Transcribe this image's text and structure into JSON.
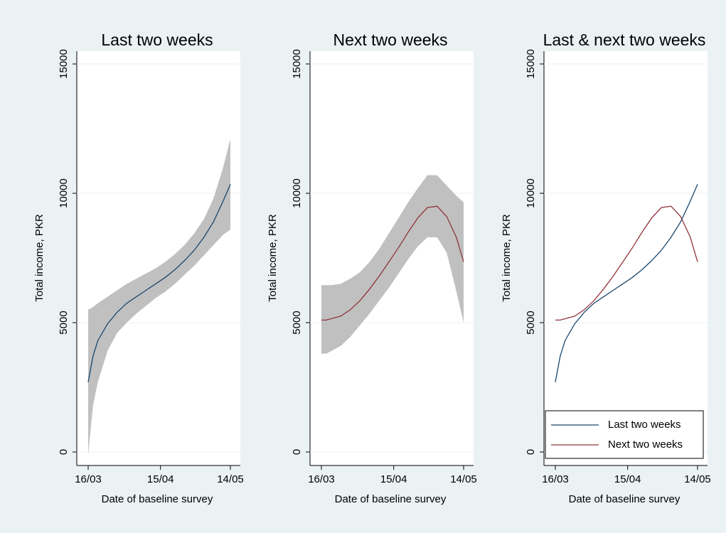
{
  "chart_data": [
    {
      "type": "line",
      "title": "Last two weeks",
      "xlabel": "Date of baseline survey",
      "ylabel": "Total income, PKR",
      "x": [
        "16/03",
        "18/03",
        "20/03",
        "24/03",
        "28/03",
        "01/04",
        "05/04",
        "09/04",
        "13/04",
        "17/04",
        "21/04",
        "25/04",
        "29/04",
        "03/05",
        "07/05",
        "11/05",
        "14/05"
      ],
      "xlim": [
        "16/03",
        "14/05"
      ],
      "xticks": [
        "16/03",
        "15/04",
        "14/05"
      ],
      "ylim": [
        0,
        15000
      ],
      "yticks": [
        0,
        5000,
        10000,
        15000
      ],
      "grid": true,
      "band_color": "#c0c0c0",
      "series": [
        {
          "color": "#1a476f",
          "values": [
            2700,
            3700,
            4300,
            4950,
            5400,
            5750,
            6000,
            6250,
            6500,
            6750,
            7050,
            7400,
            7800,
            8300,
            8900,
            9700,
            10350
          ],
          "lower": [
            -100,
            1800,
            2700,
            3900,
            4600,
            5000,
            5350,
            5650,
            5950,
            6200,
            6500,
            6850,
            7200,
            7600,
            8000,
            8400,
            8600
          ],
          "upper": [
            5500,
            5600,
            5750,
            6000,
            6250,
            6500,
            6700,
            6900,
            7100,
            7350,
            7650,
            8000,
            8450,
            9000,
            9800,
            11000,
            12100
          ]
        }
      ]
    },
    {
      "type": "line",
      "title": "Next two weeks",
      "xlabel": "Date of baseline survey",
      "ylabel": "Total income, PKR",
      "x": [
        "16/03",
        "18/03",
        "20/03",
        "24/03",
        "28/03",
        "01/04",
        "05/04",
        "09/04",
        "13/04",
        "17/04",
        "21/04",
        "25/04",
        "29/04",
        "03/05",
        "07/05",
        "11/05",
        "14/05"
      ],
      "xlim": [
        "16/03",
        "14/05"
      ],
      "xticks": [
        "16/03",
        "15/04",
        "14/05"
      ],
      "ylim": [
        0,
        15000
      ],
      "yticks": [
        0,
        5000,
        10000,
        15000
      ],
      "grid": true,
      "band_color": "#c0c0c0",
      "series": [
        {
          "color": "#90353b",
          "values": [
            5100,
            5100,
            5150,
            5250,
            5500,
            5850,
            6300,
            6800,
            7350,
            7900,
            8500,
            9050,
            9450,
            9500,
            9100,
            8300,
            7350
          ],
          "lower": [
            3800,
            3800,
            3900,
            4100,
            4450,
            4900,
            5350,
            5850,
            6350,
            6900,
            7450,
            7950,
            8300,
            8300,
            7700,
            6200,
            5000
          ],
          "upper": [
            6450,
            6450,
            6450,
            6500,
            6700,
            6950,
            7350,
            7850,
            8450,
            9050,
            9650,
            10200,
            10700,
            10700,
            10300,
            9900,
            9650
          ]
        }
      ]
    },
    {
      "type": "line",
      "title": "Last & next two weeks",
      "xlabel": "Date of baseline survey",
      "ylabel": "Total income, PKR",
      "x": [
        "16/03",
        "18/03",
        "20/03",
        "24/03",
        "28/03",
        "01/04",
        "05/04",
        "09/04",
        "13/04",
        "17/04",
        "21/04",
        "25/04",
        "29/04",
        "03/05",
        "07/05",
        "11/05",
        "14/05"
      ],
      "xlim": [
        "16/03",
        "14/05"
      ],
      "xticks": [
        "16/03",
        "15/04",
        "14/05"
      ],
      "ylim": [
        0,
        15000
      ],
      "yticks": [
        0,
        5000,
        10000,
        15000
      ],
      "grid": true,
      "legend": "bottom right",
      "series": [
        {
          "name": "Last two weeks",
          "color": "#1a476f",
          "values": [
            2700,
            3700,
            4300,
            4950,
            5400,
            5750,
            6000,
            6250,
            6500,
            6750,
            7050,
            7400,
            7800,
            8300,
            8900,
            9700,
            10350
          ]
        },
        {
          "name": "Next two weeks",
          "color": "#90353b",
          "values": [
            5100,
            5100,
            5150,
            5250,
            5500,
            5850,
            6300,
            6800,
            7350,
            7900,
            8500,
            9050,
            9450,
            9500,
            9100,
            8300,
            7350
          ]
        }
      ]
    }
  ]
}
